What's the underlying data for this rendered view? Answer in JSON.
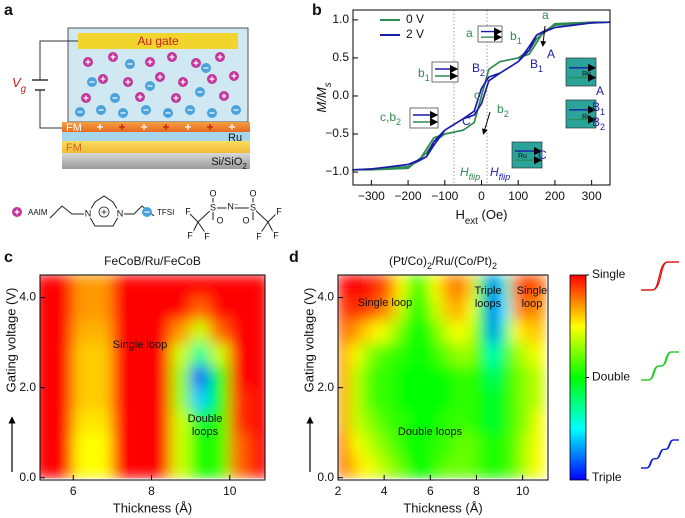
{
  "panel_labels": [
    "a",
    "b",
    "c",
    "d"
  ],
  "diagram": {
    "gate": "Au gate",
    "voltage": [
      "V",
      "g"
    ],
    "layers": [
      "FM",
      "Ru",
      "FM"
    ],
    "substrate": [
      "Si/SiO",
      "2"
    ],
    "cation": "AAIM",
    "cation_atoms": [
      "N",
      "N"
    ],
    "anion": "TFSI",
    "anion_atoms": [
      "F",
      "F",
      "F",
      "S",
      "O",
      "O",
      "N⁻",
      "S",
      "O",
      "O",
      "F",
      "F",
      "F"
    ]
  },
  "chart_data": [
    {
      "type": "line",
      "xlabel": [
        "H",
        "ext",
        " (Oe)"
      ],
      "ylabel": [
        "M/M",
        "s"
      ],
      "x": [
        350,
        300,
        200,
        170,
        150,
        130,
        100,
        50,
        20,
        0,
        -20,
        -50,
        -100,
        -130,
        -150,
        -200,
        -300,
        -350,
        -350,
        -300,
        -200,
        -170,
        -150,
        -130,
        -100,
        -50,
        -20,
        0,
        20,
        50,
        100,
        130,
        150,
        200,
        300,
        350
      ],
      "series": [
        {
          "name": "0 V",
          "color": "#2e8b50",
          "values": [
            0.97,
            0.96,
            0.93,
            0.85,
            0.7,
            0.55,
            0.5,
            0.45,
            0.35,
            0,
            -0.35,
            -0.45,
            -0.5,
            -0.6,
            -0.75,
            -0.95,
            -0.97,
            -0.97,
            -0.97,
            -0.96,
            -0.93,
            -0.85,
            -0.7,
            -0.55,
            -0.5,
            -0.45,
            -0.35,
            0,
            0.35,
            0.45,
            0.5,
            0.6,
            0.75,
            0.95,
            0.97,
            0.97
          ]
        },
        {
          "name": "2 V",
          "color": "#1c1caa",
          "values": [
            0.97,
            0.96,
            0.9,
            0.85,
            0.8,
            0.65,
            0.45,
            0.3,
            0.25,
            0.1,
            -0.2,
            -0.3,
            -0.45,
            -0.6,
            -0.8,
            -0.9,
            -0.96,
            -0.97,
            -0.97,
            -0.96,
            -0.9,
            -0.85,
            -0.8,
            -0.65,
            -0.45,
            -0.3,
            -0.25,
            -0.1,
            0.2,
            0.3,
            0.45,
            0.6,
            0.8,
            0.9,
            0.96,
            0.97
          ]
        }
      ],
      "xlim": [
        -350,
        350
      ],
      "ylim": [
        -1.17,
        1.13
      ],
      "xticks": [
        {
          "value": -300,
          "label": "−300"
        },
        {
          "value": -200,
          "label": "−200"
        },
        {
          "value": -100,
          "label": "−100"
        },
        0,
        100,
        200,
        300
      ],
      "yticks": [
        {
          "value": -1,
          "label": "−1.0"
        },
        {
          "value": -0.5,
          "label": "−0.5"
        },
        {
          "value": 0,
          "label": "0.0"
        },
        {
          "value": 0.5,
          "label": "0.5"
        },
        {
          "value": 1,
          "label": "1.0"
        }
      ],
      "dotted_lines": [
        -75,
        15
      ],
      "annotations": [
        "a",
        "a",
        [
          "b",
          "1"
        ],
        [
          "b",
          "1"
        ],
        "A",
        [
          "B",
          "1"
        ],
        [
          "B",
          "2"
        ],
        "c",
        "C",
        [
          "c,b",
          "2"
        ],
        [
          "b",
          "2"
        ],
        [
          "H",
          "flip"
        ],
        [
          "H",
          "flip"
        ],
        "A",
        [
          "B",
          "1"
        ],
        [
          "B",
          "2"
        ],
        "C",
        "Ru",
        "Ru",
        "Ru"
      ]
    },
    {
      "type": "heatmap",
      "title": "FeCoB/Ru/FeCoB",
      "xlabel": "Thickness (Å)",
      "ylabel": "Gating voltage (V)",
      "xlim": [
        5.15,
        10.9
      ],
      "ylim": [
        -0.05,
        4.5
      ],
      "xticks": [
        6,
        8,
        10
      ],
      "yticks": [
        {
          "value": 0,
          "label": "0.0"
        },
        {
          "value": 2,
          "label": "2.0"
        },
        {
          "value": 4,
          "label": "4.0"
        }
      ],
      "x": [
        5.25,
        5.75,
        6.25,
        6.75,
        7.25,
        7.75,
        8.25,
        8.75,
        9.25,
        9.75,
        10.25,
        10.75
      ],
      "y": [
        0.25,
        0.75,
        1.25,
        1.75,
        2.25,
        2.75,
        3.25,
        3.75,
        4.25
      ],
      "z": [
        [
          1,
          1,
          1.5,
          1.5,
          1,
          1,
          1,
          1.6,
          2.0,
          1.9,
          1.2,
          1
        ],
        [
          1,
          1,
          1.5,
          1.5,
          1,
          1,
          1,
          1.6,
          2.0,
          1.9,
          1.2,
          1
        ],
        [
          1,
          1,
          1.45,
          1.45,
          1,
          1,
          1,
          1.6,
          2.1,
          1.9,
          1.1,
          1
        ],
        [
          1,
          1,
          1.4,
          1.4,
          1,
          1,
          1,
          1.7,
          2.6,
          2.0,
          1.1,
          1
        ],
        [
          1,
          1,
          1.4,
          1.4,
          1,
          1,
          1,
          1.7,
          2.8,
          2.0,
          1,
          1
        ],
        [
          1,
          1,
          1.4,
          1.4,
          1,
          1,
          1,
          1.6,
          2.3,
          1.6,
          1,
          1
        ],
        [
          1,
          1,
          1.35,
          1.35,
          1,
          1,
          1,
          1.3,
          1.6,
          1.2,
          1,
          1
        ],
        [
          1,
          1,
          1.3,
          1.3,
          1,
          1,
          1,
          1,
          1.2,
          1,
          1,
          1
        ],
        [
          1,
          1,
          1.3,
          1.3,
          1,
          1,
          1,
          1,
          1,
          1,
          1,
          1
        ]
      ],
      "annotations": [
        "Single loop",
        "Double",
        "loops"
      ]
    },
    {
      "type": "heatmap",
      "title": [
        "(Pt/Co)",
        "2",
        "/Ru/(Co/Pt)",
        "2"
      ],
      "xlabel": "Thickness (Å)",
      "ylabel": "Gating voltage (V)",
      "xlim": [
        2,
        11.1
      ],
      "ylim": [
        -0.05,
        4.5
      ],
      "xticks": [
        2,
        4,
        6,
        8,
        10
      ],
      "yticks": [
        {
          "value": 0,
          "label": "0.0"
        },
        {
          "value": 2,
          "label": "2.0"
        },
        {
          "value": 4,
          "label": "4.0"
        }
      ],
      "x": [
        2.25,
        2.75,
        3.25,
        3.75,
        4.25,
        4.75,
        5.25,
        5.75,
        6.25,
        6.75,
        7.25,
        7.75,
        8.25,
        8.75,
        9.25,
        9.75,
        10.25,
        10.75
      ],
      "y": [
        0.25,
        0.75,
        1.25,
        1.75,
        2.25,
        2.75,
        3.25,
        3.75,
        4.25
      ],
      "z": [
        [
          1.2,
          1.4,
          1.5,
          1.6,
          1.7,
          1.8,
          2.0,
          2.0,
          1.9,
          1.8,
          1.8,
          1.8,
          1.9,
          2.0,
          1.9,
          1.8,
          1.6,
          1.5
        ],
        [
          1.2,
          1.5,
          1.6,
          1.7,
          1.8,
          1.9,
          2.0,
          2.0,
          1.9,
          1.9,
          1.8,
          1.8,
          1.9,
          2.0,
          1.9,
          1.8,
          1.6,
          1.5
        ],
        [
          1.3,
          1.6,
          1.7,
          1.8,
          1.9,
          1.9,
          2.0,
          2.0,
          2.0,
          1.9,
          1.9,
          1.9,
          2.0,
          2.1,
          2.0,
          1.8,
          1.7,
          1.5
        ],
        [
          1.3,
          1.6,
          1.8,
          1.9,
          1.9,
          2.0,
          2.0,
          2.0,
          2.0,
          2.0,
          1.9,
          1.9,
          2.0,
          2.1,
          2.0,
          1.8,
          1.7,
          1.6
        ],
        [
          1.3,
          1.6,
          1.8,
          1.9,
          1.9,
          2.0,
          2.0,
          2.0,
          2.0,
          2.0,
          1.9,
          1.9,
          2.0,
          2.2,
          2.0,
          1.8,
          1.7,
          1.6
        ],
        [
          1.3,
          1.5,
          1.7,
          1.8,
          1.9,
          1.9,
          2.0,
          2.0,
          1.9,
          1.8,
          1.7,
          1.7,
          2.0,
          2.4,
          2.1,
          1.7,
          1.6,
          1.5
        ],
        [
          1.2,
          1.3,
          1.4,
          1.5,
          1.6,
          1.8,
          2.0,
          2.0,
          1.8,
          1.6,
          1.5,
          1.6,
          2.1,
          2.8,
          2.3,
          1.5,
          1.4,
          1.4
        ],
        [
          1.1,
          1.1,
          1.1,
          1.2,
          1.3,
          1.6,
          2.0,
          1.9,
          1.6,
          1.4,
          1.3,
          1.5,
          2.2,
          3.0,
          2.5,
          1.3,
          1.2,
          1.3
        ],
        [
          1.0,
          1.0,
          1.0,
          1.1,
          1.2,
          1.5,
          1.9,
          1.8,
          1.5,
          1.3,
          1.2,
          1.4,
          2.2,
          3.0,
          2.4,
          1.2,
          1.1,
          1.2
        ]
      ],
      "annotations": [
        "Single loop",
        "Double loops",
        "Triple",
        "loops",
        "Single",
        "loop"
      ],
      "colorbar": {
        "zlim": [
          1,
          3
        ],
        "colors": [
          "#ff0000",
          "#ffff00",
          "#00ff00",
          "#00ffff",
          "#0000ff"
        ],
        "ticks": [
          {
            "value": 1,
            "label": "Single"
          },
          {
            "value": 2,
            "label": "Double"
          },
          {
            "value": 3,
            "label": "Triple"
          }
        ]
      }
    }
  ]
}
